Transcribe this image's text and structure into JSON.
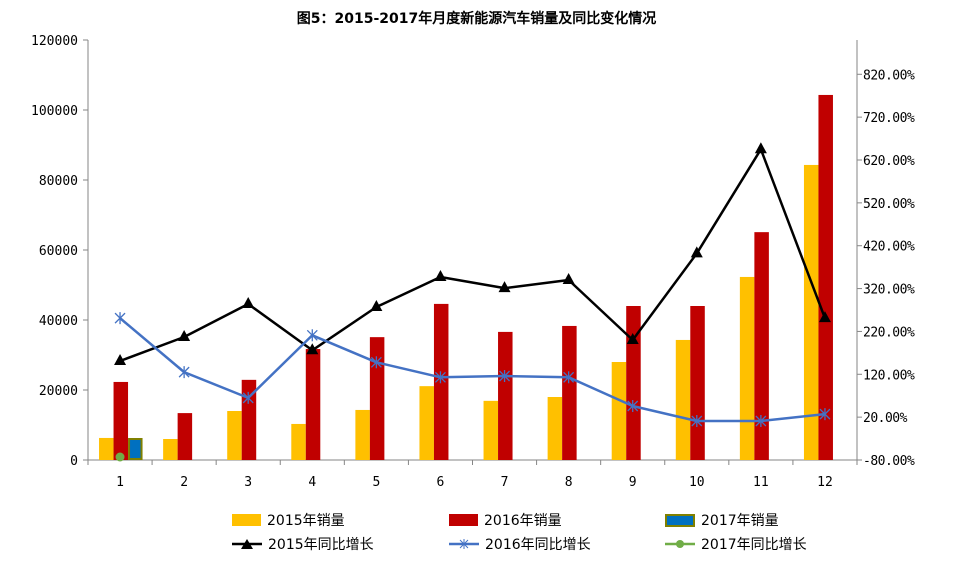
{
  "chart_data": {
    "type": "bar+line",
    "title": "图5：2015-2017年月度新能源汽车销量及同比变化情况",
    "categories": [
      "1",
      "2",
      "3",
      "4",
      "5",
      "6",
      "7",
      "8",
      "9",
      "10",
      "11",
      "12"
    ],
    "y_left": {
      "range": [
        0,
        120000
      ],
      "ticks": [
        "0",
        "20000",
        "40000",
        "60000",
        "80000",
        "100000",
        "120000"
      ]
    },
    "y_right": {
      "range": [
        -80,
        900
      ],
      "ticks": [
        "-80.00%",
        "20.00%",
        "120.00%",
        "220.00%",
        "320.00%",
        "420.00%",
        "520.00%",
        "620.00%",
        "720.00%",
        "820.00%"
      ]
    },
    "grid": false,
    "legend_position": "bottom",
    "bar_series": [
      {
        "name": "2015年销量",
        "color": "#FFC000",
        "values": [
          6300,
          6000,
          14000,
          10300,
          14300,
          21100,
          16900,
          18000,
          28000,
          34300,
          52300,
          84300
        ]
      },
      {
        "name": "2016年销量",
        "color": "#C00000",
        "values": [
          22300,
          13400,
          22900,
          31700,
          35100,
          44600,
          36600,
          38300,
          44000,
          44000,
          65100,
          104300
        ]
      },
      {
        "name": "2017年销量",
        "color": "#0070C0",
        "border": "#808000",
        "values": [
          6000,
          null,
          null,
          null,
          null,
          null,
          null,
          null,
          null,
          null,
          null,
          null
        ]
      }
    ],
    "line_series": [
      {
        "name": "2015年同比增长",
        "color": "#000000",
        "marker": "triangle",
        "values": [
          151,
          207,
          284,
          176,
          277,
          347,
          321,
          340,
          200,
          402,
          645,
          251
        ]
      },
      {
        "name": "2016年同比增长",
        "color": "#4472C4",
        "marker": "asterisk",
        "values": [
          251,
          125,
          65,
          211,
          148,
          113,
          116,
          113,
          46,
          11,
          11,
          27
        ]
      },
      {
        "name": "2017年同比增长",
        "color": "#70AD47",
        "marker": "circle",
        "values": [
          -73,
          null,
          null,
          null,
          null,
          null,
          null,
          null,
          null,
          null,
          null,
          null
        ]
      }
    ]
  }
}
